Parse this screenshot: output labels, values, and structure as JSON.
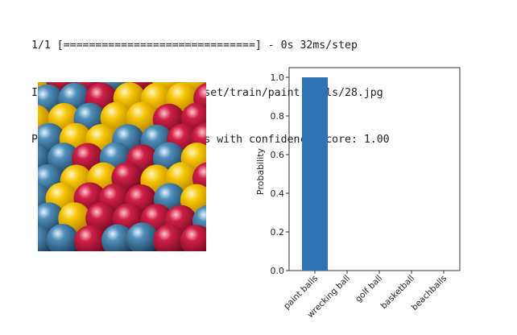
{
  "output": {
    "progress_line": "1/1 [==============================] - 0s 32ms/step",
    "image_line": "Image: ./drive/MyDrive/dataset/train/paint balls/28.jpg",
    "prediction_line": "Predicted class: paint balls with confidence score: 1.00"
  },
  "chart_data": {
    "type": "bar",
    "categories": [
      "paint balls",
      "wrecking ball",
      "golf ball",
      "basketball",
      "beachballs"
    ],
    "values": [
      1.0,
      0.0,
      0.0,
      0.0,
      0.0
    ],
    "ylabel": "Probability",
    "ylim": [
      0,
      1.05
    ],
    "yticks": [
      "0.0",
      "0.2",
      "0.4",
      "0.6",
      "0.8",
      "1.0"
    ],
    "bar_color": "#2f73b5",
    "grid": false
  },
  "photo": {
    "subject": "paintballs-photo",
    "colors": [
      "#e8b400",
      "#c2183a",
      "#3f7fa8"
    ]
  }
}
